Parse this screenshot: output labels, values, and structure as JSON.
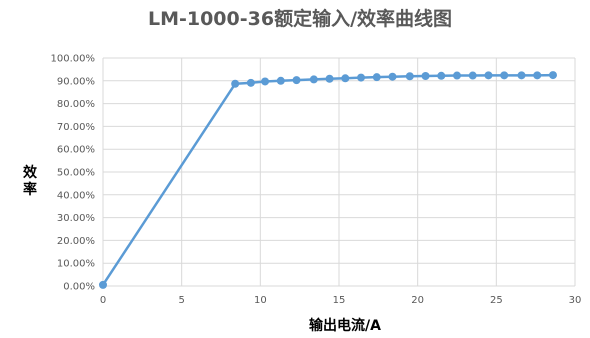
{
  "chart_data": {
    "type": "line",
    "title": "LM-1000-36额定输入/效率曲线图",
    "xlabel": "输出电流/A",
    "ylabel": "效率",
    "xlim": [
      0,
      30
    ],
    "ylim": [
      0,
      100
    ],
    "x_ticks": [
      0,
      5,
      10,
      15,
      20,
      25,
      30
    ],
    "x_tick_labels": [
      "0",
      "5",
      "10",
      "15",
      "20",
      "25",
      "30"
    ],
    "y_ticks": [
      0,
      10,
      20,
      30,
      40,
      50,
      60,
      70,
      80,
      90,
      100
    ],
    "y_tick_labels": [
      "0.00%",
      "10.00%",
      "20.00%",
      "30.00%",
      "40.00%",
      "50.00%",
      "60.00%",
      "70.00%",
      "80.00%",
      "90.00%",
      "100.00%"
    ],
    "grid": true,
    "legend": "none",
    "series_color": "#5B9BD5",
    "series": [
      {
        "x": [
          0,
          8.4,
          9.4,
          10.3,
          11.3,
          12.3,
          13.4,
          14.4,
          15.4,
          16.4,
          17.4,
          18.4,
          19.5,
          20.5,
          21.5,
          22.5,
          23.5,
          24.5,
          25.5,
          26.6,
          27.6,
          28.6
        ],
        "y": [
          0.5,
          88.7,
          89.1,
          89.7,
          90.0,
          90.3,
          90.6,
          90.9,
          91.1,
          91.4,
          91.6,
          91.8,
          92.0,
          92.1,
          92.2,
          92.3,
          92.3,
          92.4,
          92.4,
          92.4,
          92.4,
          92.5
        ]
      }
    ]
  }
}
